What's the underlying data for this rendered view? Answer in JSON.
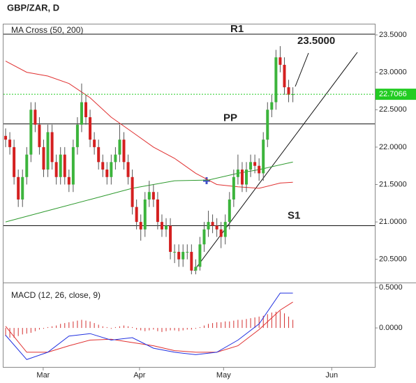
{
  "chart_data": [
    {
      "type": "candlestick",
      "title": "GBP/ZAR, D",
      "subtitle": "MA Cross (50, 200)",
      "up_color": "#3cb43c",
      "down_color": "#d42020",
      "open": [
        22.15,
        22.1,
        22.0,
        21.6,
        21.3,
        21.6,
        21.9,
        22.5,
        22.3,
        22.0,
        21.7,
        22.2,
        21.8,
        21.6,
        21.9,
        21.6,
        21.5,
        22.0,
        22.3,
        22.6,
        22.4,
        22.1,
        22.0,
        21.8,
        21.7,
        21.6,
        21.8,
        21.9,
        22.1,
        21.8,
        21.6,
        21.2,
        21.0,
        20.9,
        21.3,
        21.4,
        21.3,
        21.0,
        20.9,
        20.95,
        20.6,
        20.6,
        20.5,
        20.6,
        20.6,
        20.35,
        20.4,
        20.7,
        20.9,
        21.0,
        20.95,
        20.9,
        20.8,
        21.0,
        21.3,
        21.6,
        21.7,
        21.5,
        21.7,
        21.8,
        21.75,
        21.65,
        22.1,
        22.5,
        22.6,
        23.2,
        23.1,
        22.8,
        22.7
      ],
      "high": [
        22.25,
        22.2,
        22.1,
        21.7,
        21.7,
        22.0,
        22.6,
        22.6,
        22.4,
        22.1,
        22.3,
        22.3,
        21.9,
        22.0,
        22.0,
        21.7,
        22.1,
        22.4,
        22.85,
        22.7,
        22.5,
        22.2,
        22.1,
        21.9,
        21.8,
        21.9,
        22.0,
        22.3,
        22.2,
        21.9,
        21.7,
        21.3,
        21.1,
        21.4,
        21.55,
        21.5,
        21.4,
        21.1,
        21.05,
        21.05,
        20.7,
        20.7,
        20.7,
        20.7,
        20.7,
        20.5,
        20.8,
        21.0,
        21.15,
        21.1,
        21.05,
        21.0,
        21.1,
        21.4,
        21.7,
        21.9,
        21.8,
        21.8,
        21.9,
        21.9,
        21.85,
        22.2,
        22.6,
        22.7,
        23.3,
        23.35,
        23.2,
        22.9,
        22.8
      ],
      "low": [
        22.0,
        21.9,
        21.5,
        21.2,
        21.2,
        21.5,
        21.8,
        22.2,
        21.9,
        21.6,
        21.6,
        21.7,
        21.5,
        21.5,
        21.5,
        21.4,
        21.4,
        21.9,
        22.2,
        22.3,
        22.0,
        21.9,
        21.7,
        21.6,
        21.5,
        21.5,
        21.7,
        21.8,
        21.7,
        21.5,
        21.1,
        20.9,
        20.75,
        20.8,
        21.2,
        21.2,
        20.9,
        20.8,
        20.8,
        20.5,
        20.45,
        20.4,
        20.4,
        20.5,
        20.3,
        20.3,
        20.35,
        20.6,
        20.8,
        20.85,
        20.8,
        20.65,
        20.7,
        20.9,
        21.2,
        21.5,
        21.4,
        21.4,
        21.6,
        21.65,
        21.55,
        21.55,
        22.0,
        22.4,
        22.5,
        23.0,
        22.7,
        22.6,
        22.6
      ],
      "close": [
        22.1,
        22.0,
        21.6,
        21.3,
        21.6,
        21.9,
        22.5,
        22.3,
        22.0,
        21.7,
        22.2,
        21.8,
        21.6,
        21.9,
        21.6,
        21.5,
        22.0,
        22.3,
        22.6,
        22.4,
        22.1,
        22.0,
        21.8,
        21.7,
        21.6,
        21.8,
        21.9,
        22.1,
        21.8,
        21.6,
        21.2,
        21.0,
        20.9,
        21.3,
        21.4,
        21.3,
        21.0,
        20.9,
        20.95,
        20.6,
        20.6,
        20.5,
        20.6,
        20.6,
        20.35,
        20.4,
        20.7,
        20.9,
        21.0,
        20.95,
        20.9,
        20.8,
        21.0,
        21.3,
        21.6,
        21.7,
        21.5,
        21.7,
        21.8,
        21.75,
        21.65,
        22.1,
        22.5,
        22.6,
        23.2,
        23.1,
        22.8,
        22.7,
        22.7066
      ],
      "lines": [
        {
          "color": "#e03030",
          "x": [
            0,
            5,
            10,
            15,
            20,
            25,
            30,
            35,
            40,
            45,
            48,
            50,
            55,
            60,
            65,
            68
          ],
          "values": [
            23.15,
            23.0,
            22.95,
            22.85,
            22.66,
            22.4,
            22.2,
            22.0,
            21.85,
            21.65,
            21.56,
            21.5,
            21.47,
            21.45,
            21.52,
            21.53
          ]
        },
        {
          "color": "#2e9a2e",
          "x": [
            0,
            10,
            20,
            30,
            40,
            48,
            55,
            60,
            68
          ],
          "values": [
            21.0,
            21.15,
            21.3,
            21.45,
            21.55,
            21.56,
            21.65,
            21.7,
            21.8
          ]
        }
      ],
      "levels": [
        {
          "label": "R1",
          "value": 23.51
        },
        {
          "label": "PP",
          "value": 22.31
        },
        {
          "label": "S1",
          "value": 20.95
        }
      ],
      "annotation": "23.5000",
      "last_price": 22.7066,
      "last_color": "#22cc22",
      "xlim": [
        -0.5,
        87.4
      ],
      "xticks": [
        {
          "value": 8.9,
          "label": "Mar"
        },
        {
          "value": 31.7,
          "label": "Apr"
        },
        {
          "value": 51.6,
          "label": "May"
        },
        {
          "value": 77.2,
          "label": "Jun"
        }
      ],
      "ylim": [
        20.19,
        23.64
      ],
      "yticks": [
        {
          "value": 20.5,
          "label": "20.5000"
        },
        {
          "value": 21.0,
          "label": "21.0000"
        },
        {
          "value": 21.5,
          "label": "21.5000"
        },
        {
          "value": 22.0,
          "label": "22.0000"
        },
        {
          "value": 22.5,
          "label": "22.5000"
        },
        {
          "value": 23.0,
          "label": "23.0000"
        },
        {
          "value": 23.5,
          "label": "23.5000"
        }
      ]
    },
    {
      "type": "macd",
      "title": "MACD (12, 26, close, 9)",
      "macd": {
        "color": "#2030e0",
        "x": [
          0,
          5,
          10,
          15,
          20,
          25,
          30,
          35,
          40,
          45,
          50,
          55,
          60,
          65,
          68
        ],
        "values": [
          -0.09,
          -0.39,
          -0.3,
          -0.1,
          -0.07,
          -0.15,
          -0.12,
          -0.25,
          -0.3,
          -0.33,
          -0.3,
          -0.15,
          0.05,
          0.43,
          0.43
        ]
      },
      "signal": {
        "color": "#e03030",
        "x": [
          0,
          5,
          10,
          15,
          20,
          25,
          30,
          35,
          40,
          45,
          50,
          55,
          60,
          65,
          68
        ],
        "values": [
          0.02,
          -0.3,
          -0.3,
          -0.22,
          -0.15,
          -0.14,
          -0.18,
          -0.22,
          -0.28,
          -0.3,
          -0.3,
          -0.22,
          -0.02,
          0.22,
          0.32
        ]
      },
      "histogram": {
        "color": "#d43030",
        "values": [
          -0.1,
          -0.12,
          -0.12,
          -0.1,
          -0.08,
          -0.07,
          -0.06,
          -0.04,
          -0.02,
          -0.01,
          0.01,
          0.02,
          0.03,
          0.05,
          0.06,
          0.07,
          0.08,
          0.09,
          0.1,
          0.09,
          0.08,
          0.06,
          0.04,
          0.02,
          0.01,
          -0.01,
          0.01,
          0.02,
          0.03,
          0.02,
          0.01,
          -0.02,
          -0.03,
          -0.04,
          -0.03,
          -0.02,
          -0.04,
          -0.05,
          -0.04,
          -0.03,
          -0.03,
          -0.04,
          -0.03,
          -0.02,
          -0.02,
          -0.01,
          0.01,
          0.03,
          0.05,
          0.06,
          0.07,
          0.07,
          0.08,
          0.08,
          0.09,
          0.1,
          0.1,
          0.11,
          0.12,
          0.13,
          0.14,
          0.15,
          0.17,
          0.19,
          0.2,
          0.21,
          0.18,
          0.14,
          0.1
        ]
      },
      "ylim": [
        -0.49,
        0.56
      ],
      "yticks": [
        {
          "value": 0.0,
          "label": "0.0000"
        },
        {
          "value": 0.5,
          "label": "0.5000"
        }
      ]
    }
  ]
}
